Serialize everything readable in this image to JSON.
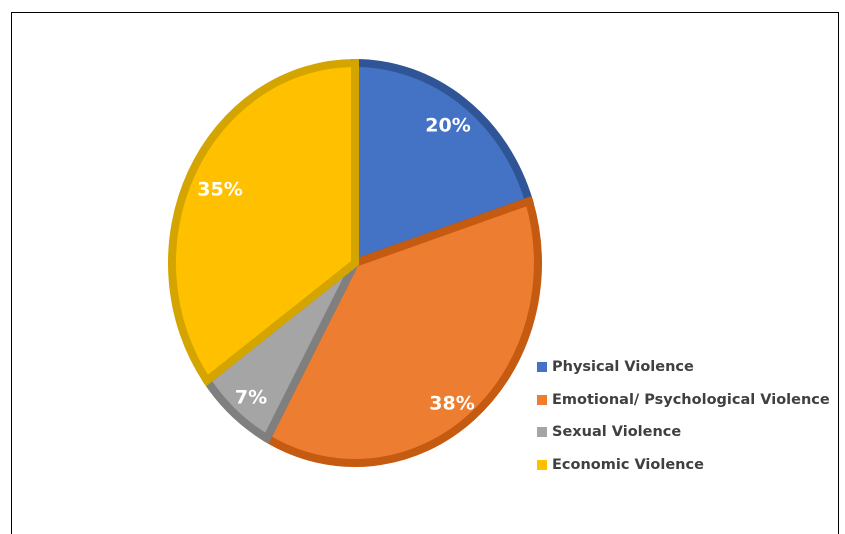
{
  "chart_data": {
    "type": "pie",
    "title": "",
    "slices": [
      {
        "label": "Physical Violence",
        "value": 20,
        "display": "20%",
        "color": "#4472C4",
        "stroke": "#2F5597"
      },
      {
        "label": "Emotional/ Psychological Violence",
        "value": 38,
        "display": "38%",
        "color": "#ED7D31",
        "stroke": "#C55A11"
      },
      {
        "label": "Sexual Violence",
        "value": 7,
        "display": "7%",
        "color": "#A5A5A5",
        "stroke": "#7F7F7F"
      },
      {
        "label": "Economic Violence",
        "value": 35,
        "display": "35%",
        "color": "#FFC000",
        "stroke": "#D4A500"
      }
    ],
    "legend_position": "right",
    "data_labels": "inside"
  },
  "legend": {
    "items": [
      {
        "label": "Physical Violence",
        "color": "#4472C4"
      },
      {
        "label": "Emotional/ Psychological Violence",
        "color": "#ED7D31"
      },
      {
        "label": "Sexual Violence",
        "color": "#A5A5A5"
      },
      {
        "label": "Economic Violence",
        "color": "#FFC000"
      }
    ]
  }
}
